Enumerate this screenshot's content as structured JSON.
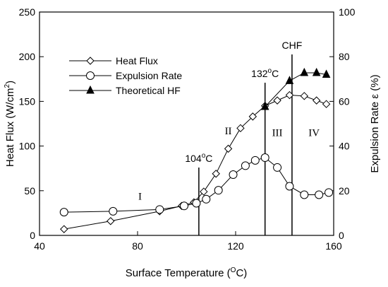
{
  "chart_data": {
    "type": "line",
    "xlabel": "Surface Temperature (",
    "xlabel_sup": "O",
    "xlabel_tail": "C)",
    "ylabel_left": "Heat Flux (W/cm",
    "ylabel_left_sup": "2",
    "ylabel_left_tail": ")",
    "ylabel_right": "Expulsion Rate ε (%)",
    "xlim": [
      40,
      160
    ],
    "ylim_left": [
      0,
      250
    ],
    "ylim_right": [
      0,
      100
    ],
    "x_ticks": [
      40,
      80,
      120,
      160
    ],
    "y_left_ticks": [
      0,
      50,
      100,
      150,
      200,
      250
    ],
    "y_right_ticks": [
      0,
      20,
      40,
      60,
      80,
      100
    ],
    "grid": false,
    "legend_position": "upper-left",
    "series": [
      {
        "name": "Heat Flux",
        "axis": "left",
        "marker": "diamond",
        "points": [
          [
            50,
            7
          ],
          [
            69,
            16
          ],
          [
            89,
            27
          ],
          [
            98,
            33
          ],
          [
            103,
            37
          ],
          [
            107,
            49
          ],
          [
            112,
            69
          ],
          [
            117,
            97
          ],
          [
            122,
            120
          ],
          [
            127,
            133
          ],
          [
            132,
            145
          ],
          [
            137,
            151
          ],
          [
            142,
            157
          ],
          [
            148,
            156
          ],
          [
            153,
            151
          ],
          [
            157,
            147
          ]
        ]
      },
      {
        "name": "Expulsion Rate",
        "axis": "right",
        "marker": "circle",
        "points": [
          [
            50,
            10.4
          ],
          [
            70,
            10.8
          ],
          [
            89,
            11.6
          ],
          [
            99,
            13.2
          ],
          [
            104,
            14.4
          ],
          [
            108,
            16.2
          ],
          [
            113,
            20.2
          ],
          [
            119,
            27.2
          ],
          [
            124,
            31.2
          ],
          [
            128,
            33.6
          ],
          [
            132,
            34.8
          ],
          [
            137,
            30.4
          ],
          [
            142,
            22.0
          ],
          [
            148,
            18.2
          ],
          [
            154,
            18.2
          ],
          [
            158,
            19.2
          ]
        ]
      },
      {
        "name": "Theoretical HF",
        "axis": "left",
        "marker": "triangle",
        "points": [
          [
            132,
            144
          ],
          [
            142,
            173
          ],
          [
            148,
            182
          ],
          [
            153,
            182
          ],
          [
            157,
            180
          ]
        ]
      }
    ],
    "vertical_lines": [
      {
        "x": 105,
        "label": "104",
        "label_sup": "o",
        "label_tail": "C"
      },
      {
        "x": 132,
        "label": "132",
        "label_sup": "o",
        "label_tail": "C"
      },
      {
        "x": 143,
        "label": "CHF",
        "label_sup": "",
        "label_tail": ""
      }
    ],
    "region_labels": [
      {
        "text": "I",
        "x": 81,
        "y": 40
      },
      {
        "text": "II",
        "x": 117,
        "y": 113
      },
      {
        "text": "III",
        "x": 137,
        "y": 111
      },
      {
        "text": "IV",
        "x": 152,
        "y": 111
      }
    ]
  }
}
